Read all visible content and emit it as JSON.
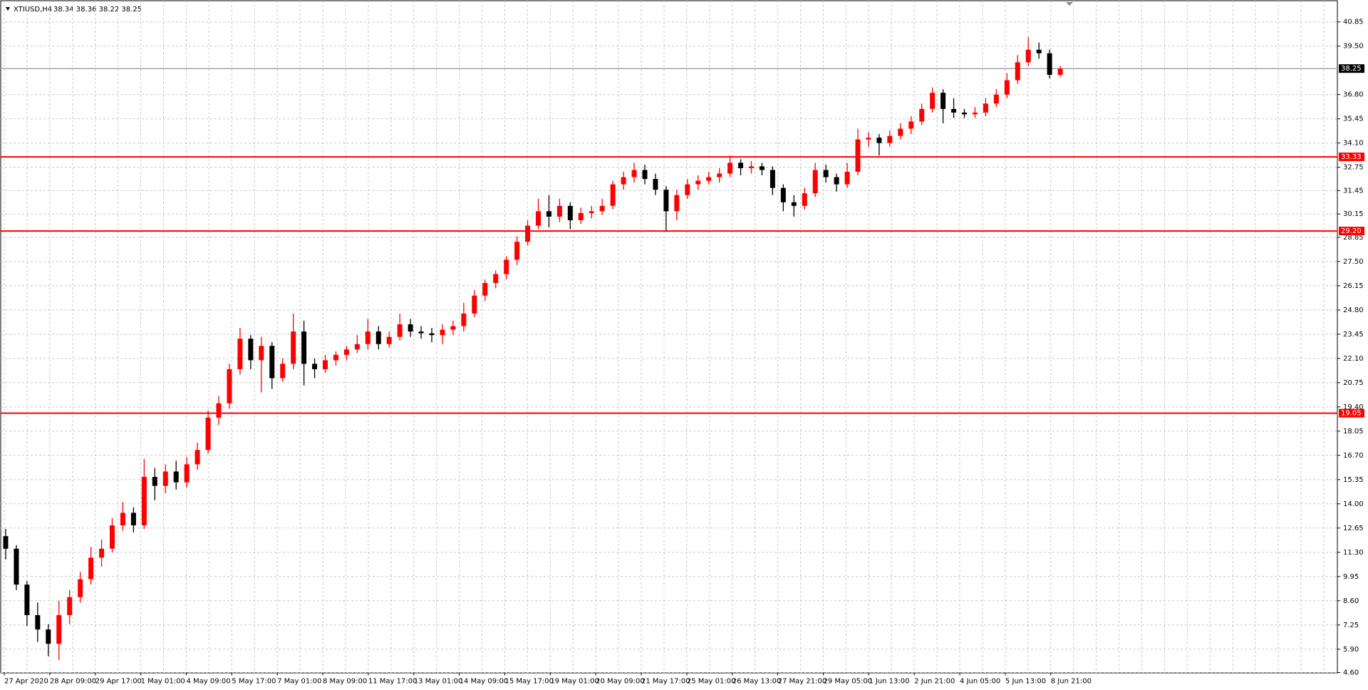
{
  "chart_data": {
    "type": "candlestick",
    "symbol": "XTIUSD,H4",
    "quote": "38.34 38.36 38.22 38.25",
    "ylim": [
      4.6,
      42.07
    ],
    "yticks": [
      40.85,
      {
        "value": 39.5,
        "label": "39.50"
      },
      {
        "value": 36.8,
        "label": "36.80"
      },
      35.45,
      {
        "value": 34.1,
        "label": "34.10"
      },
      32.75,
      31.45,
      30.15,
      28.85,
      {
        "value": 27.5,
        "label": "27.50"
      },
      26.15,
      {
        "value": 24.8,
        "label": "24.80"
      },
      23.45,
      {
        "value": 22.1,
        "label": "22.10"
      },
      20.75,
      {
        "value": 19.4,
        "label": "19.40"
      },
      18.05,
      {
        "value": 16.7,
        "label": "16.70"
      },
      15.35,
      {
        "value": 14,
        "label": "14.00"
      },
      12.65,
      {
        "value": 11.3,
        "label": "11.30"
      },
      9.95,
      {
        "value": 8.6,
        "label": "8.60"
      },
      7.25,
      {
        "value": 5.9,
        "label": "5.90"
      },
      {
        "value": 4.6,
        "label": "4.60"
      }
    ],
    "xlabels": [
      "27 Apr 2020",
      "28 Apr 09:00",
      "29 Apr 17:00",
      "1 May 01:00",
      "4 May 09:00",
      "5 May 17:00",
      "7 May 01:00",
      "8 May 09:00",
      "11 May 17:00",
      "13 May 01:00",
      "14 May 09:00",
      "15 May 17:00",
      "19 May 01:00",
      "20 May 09:00",
      "21 May 17:00",
      "25 May 01:00",
      "26 May 13:00",
      "27 May 21:00",
      "29 May 05:00",
      "1 Jun 13:00",
      "2 Jun 21:00",
      "4 Jun 05:00",
      "5 Jun 13:00",
      "8 Jun 21:00"
    ],
    "up_color": "#ff0000",
    "down_color": "#000000",
    "levels": [
      33.33,
      {
        "value": 29.2,
        "label": "29.20"
      },
      19.05
    ],
    "level_color": "#ff0000",
    "current_price": 38.25,
    "grid": true,
    "ohlc": [
      [
        12.2,
        12.6,
        10.9,
        11.5
      ],
      [
        11.5,
        11.7,
        9.2,
        9.5
      ],
      [
        9.5,
        9.7,
        7.2,
        7.8
      ],
      [
        7.8,
        8.5,
        6.3,
        7.0
      ],
      [
        7.0,
        7.3,
        5.5,
        6.2
      ],
      [
        6.2,
        8.6,
        5.3,
        7.8
      ],
      [
        7.8,
        9.2,
        7.3,
        8.8
      ],
      [
        8.8,
        10.2,
        8.5,
        9.8
      ],
      [
        9.8,
        11.6,
        9.5,
        11.0
      ],
      [
        11.0,
        12.0,
        10.5,
        11.5
      ],
      [
        11.5,
        13.2,
        11.3,
        12.8
      ],
      [
        12.8,
        14.1,
        12.5,
        13.5
      ],
      [
        13.5,
        13.8,
        12.4,
        12.8
      ],
      [
        12.8,
        16.5,
        12.6,
        15.5
      ],
      [
        15.5,
        16.0,
        14.2,
        15.0
      ],
      [
        15.0,
        16.2,
        14.6,
        15.8
      ],
      [
        15.8,
        16.4,
        14.8,
        15.2
      ],
      [
        15.2,
        16.6,
        14.9,
        16.2
      ],
      [
        16.2,
        17.4,
        15.9,
        17.0
      ],
      [
        17.0,
        19.2,
        16.8,
        18.8
      ],
      [
        18.8,
        20.0,
        18.4,
        19.6
      ],
      [
        19.6,
        21.8,
        19.3,
        21.5
      ],
      [
        21.5,
        23.8,
        21.2,
        23.2
      ],
      [
        23.2,
        23.4,
        21.5,
        22.0
      ],
      [
        22.0,
        23.3,
        20.2,
        22.8
      ],
      [
        22.8,
        23.0,
        20.4,
        21.0
      ],
      [
        21.0,
        22.1,
        20.8,
        21.8
      ],
      [
        21.8,
        24.6,
        21.5,
        23.6
      ],
      [
        23.6,
        24.2,
        20.6,
        21.8
      ],
      [
        21.8,
        22.1,
        21.0,
        21.5
      ],
      [
        21.5,
        22.3,
        21.3,
        22.0
      ],
      [
        22.0,
        22.5,
        21.7,
        22.3
      ],
      [
        22.3,
        22.8,
        22.0,
        22.6
      ],
      [
        22.6,
        23.4,
        22.4,
        22.9
      ],
      [
        22.9,
        24.3,
        22.6,
        23.6
      ],
      [
        23.6,
        23.9,
        22.6,
        22.9
      ],
      [
        22.9,
        23.6,
        22.7,
        23.3
      ],
      [
        23.3,
        24.6,
        23.1,
        24.0
      ],
      [
        24.0,
        24.3,
        23.3,
        23.6
      ],
      [
        23.6,
        23.9,
        23.2,
        23.5
      ],
      [
        23.5,
        23.8,
        23.0,
        23.4
      ],
      [
        23.4,
        24.0,
        22.9,
        23.7
      ],
      [
        23.7,
        24.2,
        23.4,
        23.9
      ],
      [
        23.9,
        25.2,
        23.6,
        24.6
      ],
      [
        24.6,
        25.9,
        24.4,
        25.6
      ],
      [
        25.6,
        26.5,
        25.3,
        26.3
      ],
      [
        26.3,
        27.0,
        26.0,
        26.8
      ],
      [
        26.8,
        27.8,
        26.5,
        27.6
      ],
      [
        27.6,
        28.9,
        27.3,
        28.6
      ],
      [
        28.6,
        29.8,
        28.4,
        29.5
      ],
      [
        29.5,
        31.0,
        29.3,
        30.3
      ],
      [
        30.3,
        31.2,
        29.4,
        30.0
      ],
      [
        30.0,
        31.0,
        29.7,
        30.6
      ],
      [
        30.6,
        30.8,
        29.3,
        29.8
      ],
      [
        29.8,
        30.5,
        29.6,
        30.2
      ],
      [
        30.2,
        30.6,
        29.9,
        30.3
      ],
      [
        30.3,
        31.0,
        30.1,
        30.6
      ],
      [
        30.6,
        32.0,
        30.4,
        31.8
      ],
      [
        31.8,
        32.5,
        31.5,
        32.2
      ],
      [
        32.2,
        33.0,
        31.9,
        32.6
      ],
      [
        32.6,
        32.9,
        31.8,
        32.1
      ],
      [
        32.1,
        32.4,
        31.2,
        31.5
      ],
      [
        31.5,
        31.7,
        29.2,
        30.3
      ],
      [
        30.3,
        31.5,
        29.8,
        31.2
      ],
      [
        31.2,
        32.1,
        31.0,
        31.8
      ],
      [
        31.8,
        32.3,
        31.5,
        32.0
      ],
      [
        32.0,
        32.5,
        31.8,
        32.2
      ],
      [
        32.2,
        32.7,
        31.9,
        32.4
      ],
      [
        32.4,
        33.4,
        32.2,
        33.0
      ],
      [
        33.0,
        33.2,
        32.3,
        32.7
      ],
      [
        32.7,
        33.1,
        32.4,
        32.8
      ],
      [
        32.8,
        33.0,
        32.3,
        32.6
      ],
      [
        32.6,
        32.8,
        31.2,
        31.6
      ],
      [
        31.6,
        31.8,
        30.3,
        30.8
      ],
      [
        30.8,
        31.2,
        30.0,
        30.6
      ],
      [
        30.6,
        31.6,
        30.4,
        31.3
      ],
      [
        31.3,
        33.0,
        31.1,
        32.6
      ],
      [
        32.6,
        32.9,
        31.9,
        32.2
      ],
      [
        32.2,
        32.4,
        31.4,
        31.8
      ],
      [
        31.8,
        33.0,
        31.6,
        32.5
      ],
      [
        32.5,
        34.9,
        32.3,
        34.3
      ],
      [
        34.3,
        34.7,
        33.9,
        34.4
      ],
      [
        34.4,
        34.6,
        33.4,
        34.1
      ],
      [
        34.1,
        34.8,
        33.9,
        34.5
      ],
      [
        34.5,
        35.2,
        34.3,
        34.9
      ],
      [
        34.9,
        35.6,
        34.6,
        35.3
      ],
      [
        35.3,
        36.3,
        35.1,
        36.0
      ],
      [
        36.0,
        37.2,
        35.8,
        36.9
      ],
      [
        36.9,
        37.1,
        35.2,
        36.0
      ],
      [
        36.0,
        36.6,
        35.5,
        35.8
      ],
      [
        35.8,
        36.0,
        35.5,
        35.7
      ],
      [
        35.7,
        36.1,
        35.5,
        35.8
      ],
      [
        35.8,
        36.6,
        35.6,
        36.3
      ],
      [
        36.3,
        37.1,
        36.1,
        36.8
      ],
      [
        36.8,
        38.0,
        36.6,
        37.6
      ],
      [
        37.6,
        39.0,
        37.4,
        38.6
      ],
      [
        38.6,
        40.0,
        38.4,
        39.3
      ],
      [
        39.3,
        39.7,
        38.8,
        39.1
      ],
      [
        39.1,
        39.3,
        37.7,
        37.9
      ],
      [
        37.9,
        38.4,
        37.8,
        38.25
      ]
    ]
  }
}
